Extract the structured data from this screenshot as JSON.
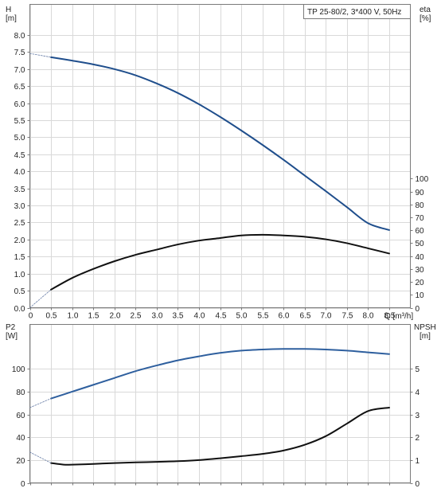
{
  "title": "TP 25-80/2, 3*400 V, 50Hz",
  "colors": {
    "head_curve": "#1f4e8c",
    "eta_curve": "#111111",
    "p2_curve": "#2e5f9e",
    "npsh_curve": "#111111",
    "dashed_extension": "#6a7fa8"
  },
  "chart_data": [
    {
      "type": "line",
      "xlabel": "Q [m³/h]",
      "ylabel_left": "H\n[m]",
      "ylabel_right": "eta\n[%]",
      "x_ticks": [
        "0",
        "0.5",
        "1.0",
        "1.5",
        "2.0",
        "2.5",
        "3.0",
        "3.5",
        "4.0",
        "4.5",
        "5.0",
        "5.5",
        "6.0",
        "6.5",
        "7.0",
        "7.5",
        "8.0",
        "8.5"
      ],
      "y_left_ticks": [
        "0.0",
        "0.5",
        "1.0",
        "1.5",
        "2.0",
        "2.5",
        "3.0",
        "3.5",
        "4.0",
        "4.5",
        "5.0",
        "5.5",
        "6.0",
        "6.5",
        "7.0",
        "7.5",
        "8.0"
      ],
      "y_right_ticks": [
        "0",
        "10",
        "20",
        "30",
        "40",
        "50",
        "60",
        "70",
        "80",
        "90",
        "100"
      ],
      "xlim": [
        0,
        9
      ],
      "ylim_left": [
        0,
        8.9
      ],
      "ylim_right": [
        0,
        235
      ],
      "grid": true,
      "series": [
        {
          "name": "H",
          "axis": "left",
          "style": "solid",
          "x": [
            0.5,
            1.0,
            1.5,
            2.0,
            2.5,
            3.0,
            3.5,
            4.0,
            4.5,
            5.0,
            5.5,
            6.0,
            6.5,
            7.0,
            7.5,
            8.0,
            8.5
          ],
          "y": [
            7.35,
            7.25,
            7.14,
            7.0,
            6.82,
            6.58,
            6.3,
            5.97,
            5.6,
            5.2,
            4.78,
            4.34,
            3.88,
            3.42,
            2.95,
            2.48,
            2.28
          ]
        },
        {
          "name": "H (extrapolated)",
          "axis": "left",
          "style": "dashed",
          "x": [
            0.0,
            0.5
          ],
          "y": [
            7.46,
            7.35
          ]
        },
        {
          "name": "eta",
          "axis": "right",
          "style": "solid",
          "x": [
            0.5,
            1.0,
            1.5,
            2.0,
            2.5,
            3.0,
            3.5,
            4.0,
            4.5,
            5.0,
            5.5,
            6.0,
            6.5,
            7.0,
            7.5,
            8.0,
            8.5
          ],
          "y": [
            14,
            23,
            30,
            36,
            41,
            45,
            49,
            52,
            54,
            56,
            56.5,
            56,
            55,
            53,
            50,
            46,
            42
          ]
        },
        {
          "name": "eta (extrapolated)",
          "axis": "right",
          "style": "dashed",
          "x": [
            0.0,
            0.5
          ],
          "y": [
            0,
            14
          ]
        }
      ]
    },
    {
      "type": "line",
      "xlabel": "",
      "ylabel_left": "P2\n[W]",
      "ylabel_right": "NPSH\n[m]",
      "y_left_ticks": [
        "0",
        "20",
        "40",
        "60",
        "80",
        "100"
      ],
      "y_right_ticks": [
        "0",
        "1",
        "2",
        "3",
        "4",
        "5"
      ],
      "xlim": [
        0,
        9
      ],
      "ylim_left": [
        0,
        139
      ],
      "ylim_right": [
        0,
        6.95
      ],
      "grid": true,
      "series": [
        {
          "name": "P2",
          "axis": "left",
          "style": "solid",
          "x": [
            0.5,
            1.0,
            1.5,
            2.0,
            2.5,
            3.0,
            3.5,
            4.0,
            4.5,
            5.0,
            5.5,
            6.0,
            6.5,
            7.0,
            7.5,
            8.0,
            8.5
          ],
          "y": [
            74,
            80,
            86,
            92,
            98,
            103,
            107.5,
            111,
            114,
            116,
            117,
            117.5,
            117.5,
            117,
            116,
            114.5,
            113
          ]
        },
        {
          "name": "P2 (extrapolated)",
          "axis": "left",
          "style": "dashed",
          "x": [
            0.0,
            0.5
          ],
          "y": [
            66,
            74
          ]
        },
        {
          "name": "NPSH",
          "axis": "right",
          "style": "solid",
          "x": [
            0.5,
            0.8,
            1.0,
            1.5,
            2.0,
            2.5,
            3.0,
            3.5,
            4.0,
            4.5,
            5.0,
            5.5,
            6.0,
            6.5,
            7.0,
            7.5,
            8.0,
            8.5
          ],
          "y": [
            0.87,
            0.8,
            0.8,
            0.83,
            0.87,
            0.9,
            0.92,
            0.95,
            1.0,
            1.08,
            1.17,
            1.27,
            1.42,
            1.67,
            2.05,
            2.6,
            3.15,
            3.3
          ]
        },
        {
          "name": "NPSH (extrapolated)",
          "axis": "right",
          "style": "dashed",
          "x": [
            0.0,
            0.5
          ],
          "y": [
            1.35,
            0.87
          ]
        }
      ]
    }
  ]
}
